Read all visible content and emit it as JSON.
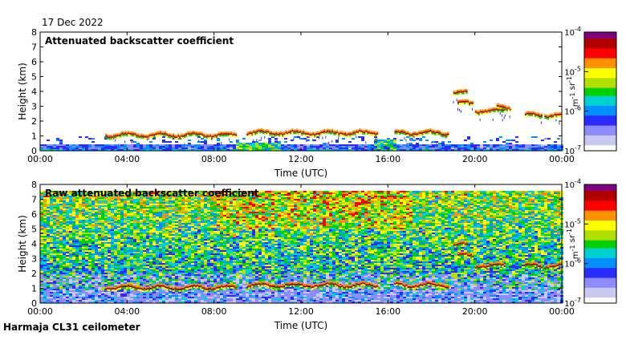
{
  "date": "17 Dec 2022",
  "footer": "Harmaja CL31 ceilometer",
  "chart_data": [
    {
      "type": "heatmap",
      "title": "Attenuated backscatter coefficient",
      "xlabel": "Time (UTC)",
      "ylabel": "Height (km)",
      "xlim": [
        0,
        24
      ],
      "ylim": [
        0,
        8
      ],
      "x_ticks": [
        0,
        4,
        8,
        12,
        16,
        20,
        24
      ],
      "x_tick_labels": [
        "00:00",
        "04:00",
        "08:00",
        "12:00",
        "16:00",
        "20:00",
        "00:00"
      ],
      "y_ticks": [
        0,
        1,
        2,
        3,
        4,
        5,
        6,
        7,
        8
      ],
      "y_tick_labels": [
        "0",
        "1",
        "2",
        "3",
        "4",
        "5",
        "6",
        "7",
        "8"
      ],
      "colorbar": {
        "scale": "log",
        "range": [
          1e-07,
          0.0001
        ],
        "tick_labels": [
          "10-7",
          "10-6",
          "10-5",
          "10-4"
        ],
        "label": "m-1 sr-1"
      },
      "cloud_layers": [
        {
          "start": 3.0,
          "end": 9.0,
          "height": 1.05
        },
        {
          "start": 9.5,
          "end": 15.5,
          "height": 1.2
        },
        {
          "start": 16.3,
          "end": 18.8,
          "height": 1.2
        },
        {
          "start": 19.0,
          "end": 19.6,
          "height": 3.9
        },
        {
          "start": 19.2,
          "end": 19.9,
          "height": 3.2
        },
        {
          "start": 20.0,
          "end": 21.4,
          "height": 2.7
        },
        {
          "start": 21.0,
          "end": 21.6,
          "height": 2.9
        },
        {
          "start": 22.3,
          "end": 23.1,
          "height": 2.4
        },
        {
          "start": 23.2,
          "end": 24.0,
          "height": 2.4
        }
      ]
    },
    {
      "type": "heatmap",
      "title": "Raw attenuated backscatter coefficient",
      "xlabel": "Time (UTC)",
      "ylabel": "Height (km)",
      "xlim": [
        0,
        24
      ],
      "ylim": [
        0,
        8
      ],
      "x_ticks": [
        0,
        4,
        8,
        12,
        16,
        20,
        24
      ],
      "x_tick_labels": [
        "00:00",
        "04:00",
        "08:00",
        "12:00",
        "16:00",
        "20:00",
        "00:00"
      ],
      "y_ticks": [
        0,
        1,
        2,
        3,
        4,
        5,
        6,
        7,
        8
      ],
      "y_tick_labels": [
        "0",
        "1",
        "2",
        "3",
        "4",
        "5",
        "6",
        "7",
        "8"
      ],
      "colorbar": {
        "scale": "log",
        "range": [
          1e-07,
          0.0001
        ],
        "tick_labels": [
          "10-7",
          "10-6",
          "10-5",
          "10-4"
        ],
        "label": "m-1 sr-1"
      },
      "cloud_layers": [
        {
          "start": 3.0,
          "end": 9.0,
          "height": 1.05
        },
        {
          "start": 9.5,
          "end": 15.5,
          "height": 1.2
        },
        {
          "start": 16.3,
          "end": 18.8,
          "height": 1.2
        },
        {
          "start": 19.0,
          "end": 19.6,
          "height": 3.9
        },
        {
          "start": 19.2,
          "end": 19.9,
          "height": 3.2
        },
        {
          "start": 20.0,
          "end": 21.4,
          "height": 2.5
        },
        {
          "start": 22.3,
          "end": 23.1,
          "height": 2.5
        },
        {
          "start": 23.2,
          "end": 24.0,
          "height": 2.5
        }
      ]
    }
  ],
  "colors": {
    "cmap": [
      "#ffffff",
      "#c8c8f0",
      "#8c8cff",
      "#2b2bff",
      "#0090ff",
      "#00d0d0",
      "#00d000",
      "#b0e000",
      "#ffff00",
      "#ff9000",
      "#ff0000",
      "#b00000",
      "#800080"
    ]
  }
}
